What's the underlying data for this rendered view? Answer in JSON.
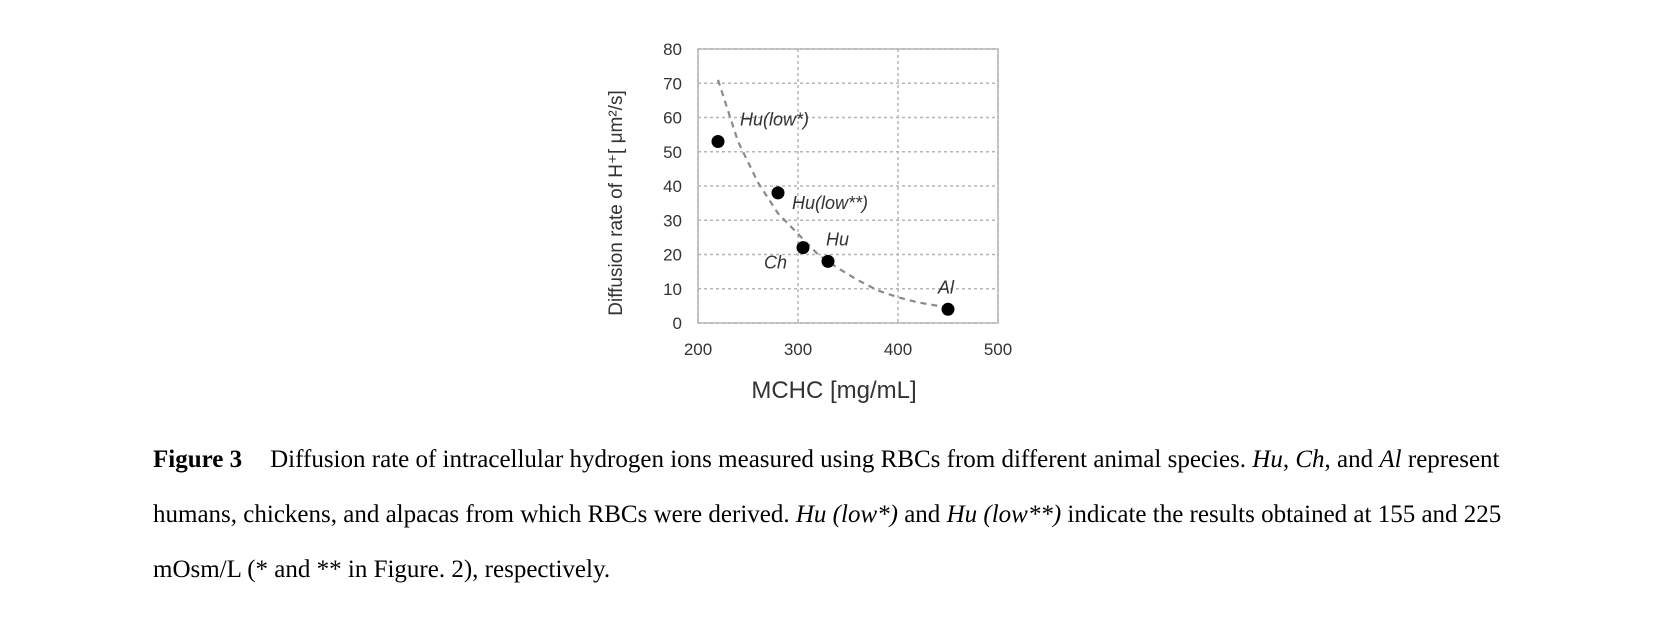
{
  "chart_data": {
    "type": "scatter",
    "xlabel": "MCHC [mg/mL]",
    "ylabel": "Diffusion rate of H⁺[ μm²/s]",
    "xlim": [
      200,
      500
    ],
    "ylim": [
      0,
      80
    ],
    "x_ticks": [
      "200",
      "300",
      "400",
      "500"
    ],
    "y_ticks": [
      "0",
      "10",
      "20",
      "30",
      "40",
      "50",
      "60",
      "70",
      "80"
    ],
    "grid": true,
    "legend": "none",
    "points": [
      {
        "label": "Hu(low*)",
        "x": 220,
        "y": 53
      },
      {
        "label": "Hu(low**)",
        "x": 280,
        "y": 38
      },
      {
        "label": "Ch",
        "x": 305,
        "y": 22
      },
      {
        "label": "Hu",
        "x": 330,
        "y": 18
      },
      {
        "label": "Al",
        "x": 450,
        "y": 4
      }
    ],
    "trendline": {
      "style": "dashed",
      "x": [
        220,
        240,
        260,
        280,
        300,
        320,
        340,
        360,
        380,
        400,
        420,
        450
      ],
      "y": [
        71,
        53,
        41,
        32,
        26,
        20,
        16,
        12.5,
        9.5,
        7.5,
        6,
        4.5
      ]
    }
  },
  "caption": {
    "label": "Figure 3",
    "text_a": "Diffusion rate of intracellular hydrogen ions measured using RBCs from different animal species. ",
    "hu": "Hu",
    "sep1": ", ",
    "ch": "Ch",
    "sep2": ", and ",
    "al": "Al",
    "text_b": " represent humans, chickens, and alpacas from which RBCs were derived. ",
    "hu_low1": "Hu (low*)",
    "text_c": " and ",
    "hu_low2": "Hu (low**)",
    "text_d": " indicate the results obtained at 155 and 225 mOsm/L (* and ** in Figure. 2), respectively."
  }
}
